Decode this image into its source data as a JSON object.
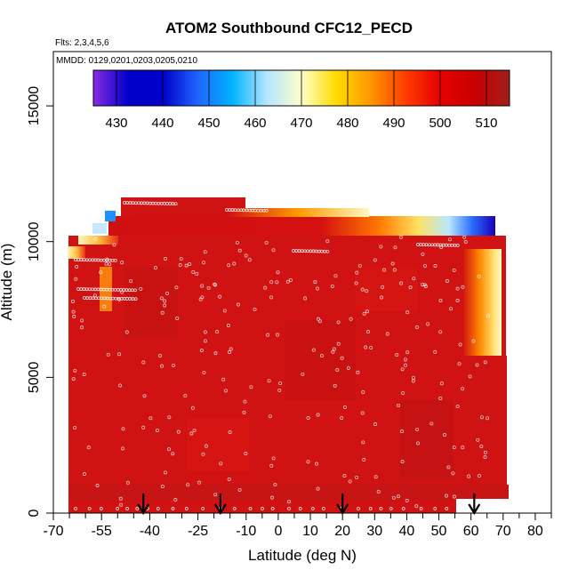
{
  "chart_data": {
    "type": "heatmap",
    "title": "ATOM2 Southbound CFC12_PECD",
    "flights_label": "Flts: 2,3,4,5,6",
    "dates_label": "MMDD: 0129,0201,0203,0205,0210",
    "xlabel": "Latitude (deg N)",
    "ylabel": "Altitude (m)",
    "xlim": [
      -70,
      85
    ],
    "ylim": [
      0,
      17000
    ],
    "x_ticks": [
      "-70",
      "-55",
      "-40",
      "-25",
      "-10",
      "0",
      "10",
      "20",
      "30",
      "40",
      "50",
      "60",
      "70",
      "80"
    ],
    "x_tick_values": [
      -70,
      -55,
      -40,
      -25,
      -10,
      0,
      10,
      20,
      30,
      40,
      50,
      60,
      70,
      80
    ],
    "y_ticks": [
      "0",
      "5000",
      "10000",
      "15000"
    ],
    "y_tick_values": [
      0,
      5000,
      10000,
      15000
    ],
    "colorbar": {
      "min": 425,
      "max": 515,
      "ticks": [
        "430",
        "440",
        "450",
        "460",
        "470",
        "480",
        "490",
        "500",
        "510"
      ],
      "tick_values": [
        430,
        440,
        450,
        460,
        470,
        480,
        490,
        500,
        510
      ],
      "colors": [
        "#8a2be2",
        "#0000c8",
        "#0000c8",
        "#1e64ff",
        "#00b4ff",
        "#b4e6ff",
        "#ffffc8",
        "#ffdc00",
        "#ff9600",
        "#ff3c00",
        "#e60000",
        "#c80000",
        "#a01e1e"
      ]
    },
    "dominant_value": 505,
    "coverage_extent": {
      "lat_range": [
        -68,
        72
      ],
      "alt_max": 12500
    },
    "profile_arrows_lat": [
      -42,
      -18,
      20,
      61
    ]
  }
}
